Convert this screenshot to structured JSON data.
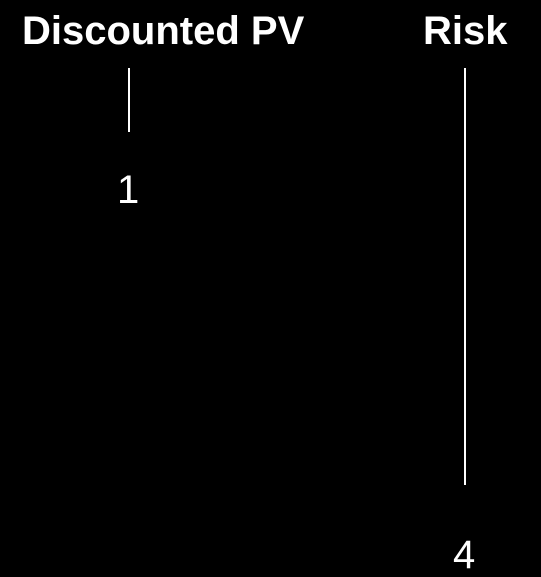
{
  "columns": [
    {
      "label": "Discounted PV",
      "value": "1"
    },
    {
      "label": "Risk",
      "value": "4"
    }
  ],
  "colors": {
    "background": "#000000",
    "foreground": "#ffffff"
  }
}
